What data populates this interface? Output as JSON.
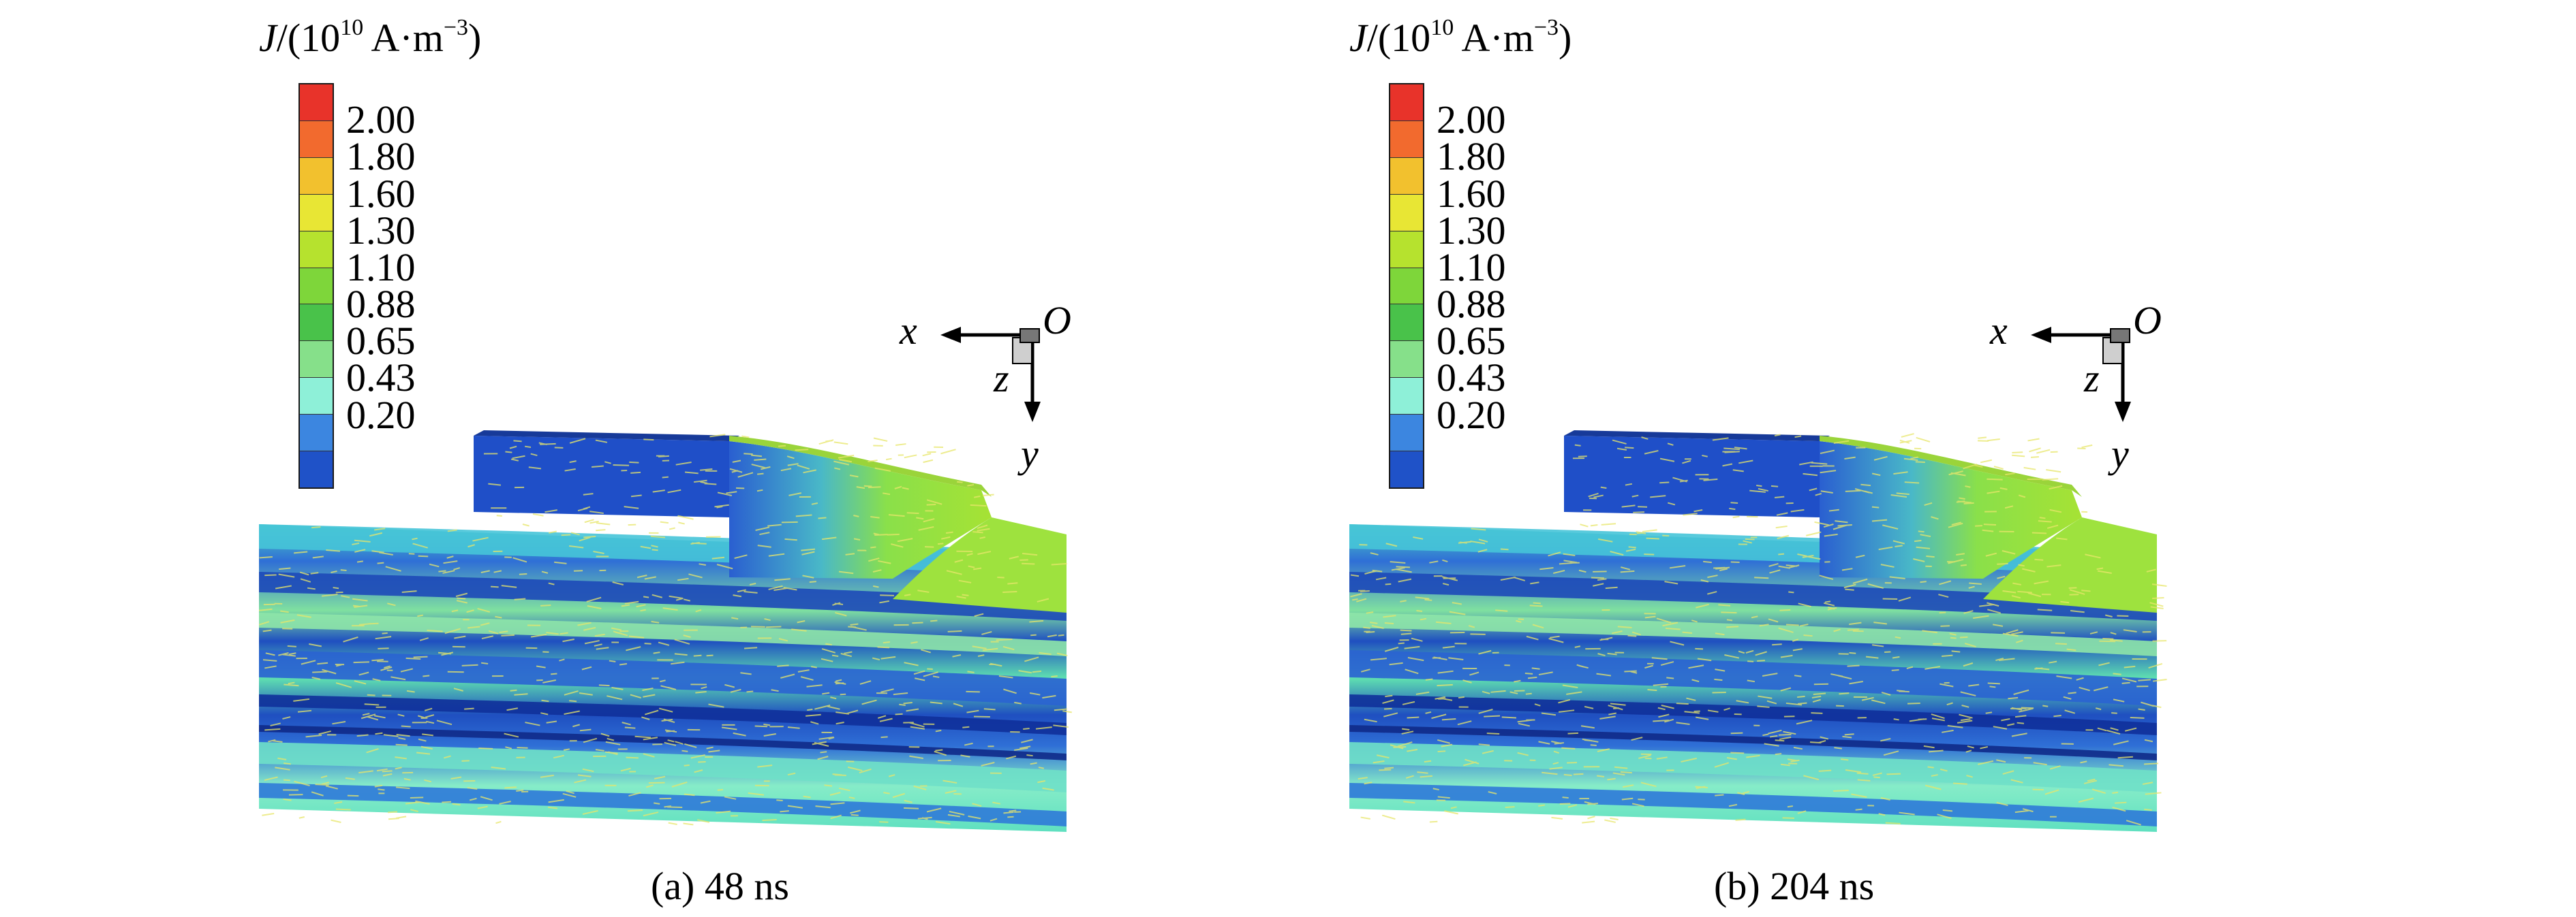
{
  "colorbar": {
    "title_prefix": "J",
    "title_mid": "/(10",
    "title_exp": "10",
    "title_units": " A·m",
    "title_units_exp": "−3",
    "title_close": ")",
    "tick_labels": [
      "2.00",
      "1.80",
      "1.60",
      "1.30",
      "1.10",
      "0.88",
      "0.65",
      "0.43",
      "0.20"
    ],
    "colors": [
      "#e8332a",
      "#f26a2e",
      "#f2c12e",
      "#e8e634",
      "#b6e22e",
      "#7ed63a",
      "#49c24a",
      "#86e08a",
      "#8ef0d8",
      "#3c86e0",
      "#1f52c8"
    ]
  },
  "axes_labels": {
    "x": "x",
    "y": "y",
    "z": "z",
    "origin": "O"
  },
  "panels": [
    {
      "id": "a",
      "caption": "(a) 48 ns"
    },
    {
      "id": "b",
      "caption": "(b) 204 ns"
    }
  ]
}
